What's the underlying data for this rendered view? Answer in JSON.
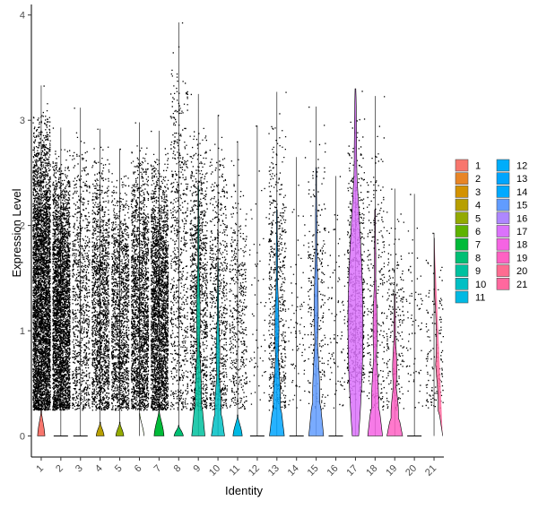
{
  "chart_data": {
    "type": "violin",
    "xlabel": "Identity",
    "ylabel": "Expression Level",
    "ylim": [
      -0.2,
      4.1
    ],
    "yticks": [
      0,
      1,
      2,
      3,
      4
    ],
    "categories": [
      "1",
      "2",
      "3",
      "4",
      "5",
      "6",
      "7",
      "8",
      "9",
      "10",
      "11",
      "12",
      "13",
      "14",
      "15",
      "16",
      "17",
      "18",
      "19",
      "20",
      "21"
    ],
    "colors": [
      "#F8766D",
      "#E88526",
      "#D39200",
      "#B79F00",
      "#93AA00",
      "#5EB300",
      "#00BA38",
      "#00BF74",
      "#00C19F",
      "#00BFC4",
      "#00B9E3",
      "#00ADFA",
      "#00A5FF",
      "#00A9FF",
      "#619CFF",
      "#AE87FF",
      "#DB72FB",
      "#F564E3",
      "#FF61C3",
      "#FF6C91",
      "#FF689E"
    ],
    "series": [
      {
        "category": "1",
        "max": 3.33,
        "n_points": 4200,
        "spread": 1.0,
        "violin_top": 0.25,
        "violin_width": 0.22,
        "fill": "bottom"
      },
      {
        "category": "2",
        "max": 2.93,
        "n_points": 3400,
        "spread": 1.0,
        "violin_top": 0.0,
        "violin_width": 0.0,
        "fill": "none"
      },
      {
        "category": "3",
        "max": 3.12,
        "n_points": 900,
        "spread": 1.0,
        "violin_top": 0.0,
        "violin_width": 0.0,
        "fill": "none"
      },
      {
        "category": "4",
        "max": 2.92,
        "n_points": 1600,
        "spread": 1.0,
        "violin_top": 0.13,
        "violin_width": 0.24,
        "fill": "bottom"
      },
      {
        "category": "5",
        "max": 2.73,
        "n_points": 1500,
        "spread": 1.0,
        "violin_top": 0.13,
        "violin_width": 0.24,
        "fill": "bottom"
      },
      {
        "category": "6",
        "max": 2.98,
        "n_points": 2000,
        "spread": 1.0,
        "violin_top": 0.22,
        "violin_width": 0.28,
        "fill": "bottom"
      },
      {
        "category": "7",
        "max": 2.9,
        "n_points": 2600,
        "spread": 1.0,
        "violin_top": 0.25,
        "violin_width": 0.3,
        "fill": "bottom"
      },
      {
        "category": "8",
        "max": 3.93,
        "n_points": 700,
        "spread": 0.9,
        "violin_top": 0.1,
        "violin_width": 0.28,
        "fill": "bottom"
      },
      {
        "category": "9",
        "max": 3.25,
        "n_points": 1100,
        "spread": 0.9,
        "violin_top": 2.38,
        "violin_width": 0.32,
        "fill": "tall"
      },
      {
        "category": "10",
        "max": 3.05,
        "n_points": 700,
        "spread": 0.9,
        "violin_top": 1.65,
        "violin_width": 0.32,
        "fill": "tall"
      },
      {
        "category": "11",
        "max": 2.8,
        "n_points": 450,
        "spread": 0.9,
        "violin_top": 0.2,
        "violin_width": 0.28,
        "fill": "bottom"
      },
      {
        "category": "12",
        "max": 2.95,
        "n_points": 60,
        "spread": 0.9,
        "violin_top": 0.0,
        "violin_width": 0.0,
        "fill": "none"
      },
      {
        "category": "13",
        "max": 3.27,
        "n_points": 600,
        "spread": 0.9,
        "violin_top": 2.15,
        "violin_width": 0.36,
        "fill": "tall"
      },
      {
        "category": "14",
        "max": 2.65,
        "n_points": 80,
        "spread": 0.9,
        "violin_top": 0.0,
        "violin_width": 0.0,
        "fill": "none"
      },
      {
        "category": "15",
        "max": 3.13,
        "n_points": 260,
        "spread": 0.9,
        "violin_top": 2.55,
        "violin_width": 0.36,
        "fill": "tall"
      },
      {
        "category": "16",
        "max": 2.47,
        "n_points": 90,
        "spread": 0.9,
        "violin_top": 0.0,
        "violin_width": 0.0,
        "fill": "none"
      },
      {
        "category": "17",
        "max": 3.28,
        "n_points": 700,
        "spread": 0.9,
        "violin_top": 3.3,
        "violin_width": 0.42,
        "fill": "full"
      },
      {
        "category": "18",
        "max": 3.23,
        "n_points": 280,
        "spread": 0.9,
        "violin_top": 2.15,
        "violin_width": 0.36,
        "fill": "tall"
      },
      {
        "category": "19",
        "max": 2.35,
        "n_points": 220,
        "spread": 0.9,
        "violin_top": 1.35,
        "violin_width": 0.38,
        "fill": "tall"
      },
      {
        "category": "20",
        "max": 2.3,
        "n_points": 70,
        "spread": 0.9,
        "violin_top": 0.0,
        "violin_width": 0.0,
        "fill": "none"
      },
      {
        "category": "21",
        "max": 1.93,
        "n_points": 140,
        "spread": 0.9,
        "violin_top": 1.93,
        "violin_width": 0.42,
        "fill": "tall"
      }
    ],
    "legend": {
      "position": "right",
      "columns": 2
    },
    "grid": false
  }
}
